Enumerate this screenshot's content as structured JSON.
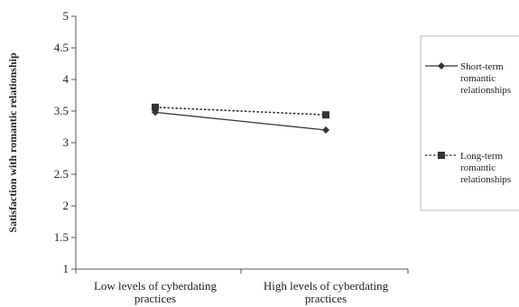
{
  "chart_data": {
    "type": "line",
    "categories": [
      "Low levels of cyberdating practices",
      "High levels of cyberdating practices"
    ],
    "category_lines": [
      [
        "Low levels of cyberdating",
        "practices"
      ],
      [
        "High levels of cyberdating",
        "practices"
      ]
    ],
    "series": [
      {
        "name": "Short-term romantic relationships",
        "name_lines": [
          "Short-term",
          "romantic",
          "relationships"
        ],
        "values": [
          3.48,
          3.2
        ],
        "marker": "diamond",
        "line_style": "solid",
        "color": "#333333"
      },
      {
        "name": "Long-term romantic relationships",
        "name_lines": [
          "Long-term",
          "romantic",
          "relationships"
        ],
        "values": [
          3.56,
          3.44
        ],
        "marker": "square",
        "line_style": "dotted",
        "color": "#333333"
      }
    ],
    "ylabel": "Satisfaction with romantic relationship",
    "xlabel": "",
    "title": "",
    "ylim": [
      1,
      5
    ],
    "yticks": [
      "1",
      "1.5",
      "2",
      "2.5",
      "3",
      "3.5",
      "4",
      "4.5",
      "5"
    ],
    "grid": false,
    "legend_position": "right"
  }
}
